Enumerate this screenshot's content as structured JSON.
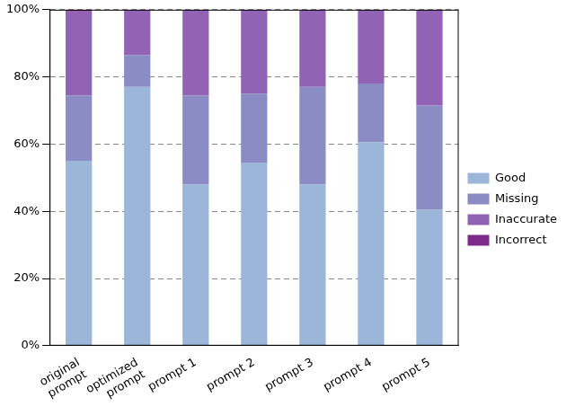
{
  "chart_data": {
    "type": "bar",
    "stacked": true,
    "grid": true,
    "legend": "right",
    "categories": [
      [
        "original",
        "prompt"
      ],
      [
        "optimized",
        "prompt"
      ],
      "prompt 1",
      "prompt 2",
      "prompt 3",
      "prompt 4",
      "prompt 5"
    ],
    "series": [
      {
        "name": "Good",
        "color": "#9bb6d8",
        "values": [
          55,
          77,
          48,
          54.5,
          48,
          60.5,
          40.5
        ]
      },
      {
        "name": "Missing",
        "color": "#8c8cc5",
        "values": [
          19.5,
          9.5,
          26.5,
          20.5,
          29,
          17.5,
          31
        ]
      },
      {
        "name": "Inaccurate",
        "color": "#9262b4",
        "values": [
          25,
          13.5,
          25.5,
          25,
          23,
          22,
          28.5
        ]
      },
      {
        "name": "Incorrect",
        "color": "#7d2a8a",
        "values": [
          0.5,
          0,
          0,
          0,
          0,
          0,
          0
        ]
      }
    ],
    "ylim": [
      0,
      100
    ],
    "yticks": [
      {
        "value": 0,
        "label": "0%"
      },
      {
        "value": 20,
        "label": "20%"
      },
      {
        "value": 40,
        "label": "40%"
      },
      {
        "value": 60,
        "label": "60%"
      },
      {
        "value": 80,
        "label": "80%"
      },
      {
        "value": 100,
        "label": "100%"
      }
    ]
  }
}
